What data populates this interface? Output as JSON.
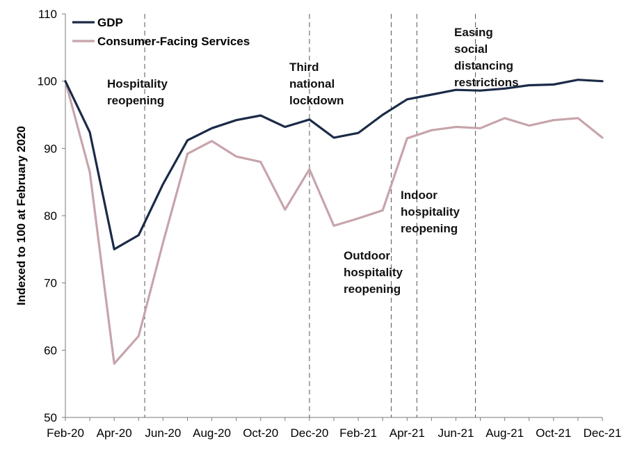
{
  "chart_data": {
    "type": "line",
    "title": "",
    "xlabel": "",
    "ylabel": "Indexed to 100 at February 2020",
    "ylim": [
      50,
      110
    ],
    "yticks": [
      50,
      60,
      70,
      80,
      90,
      100,
      110
    ],
    "x": [
      "Feb-20",
      "Mar-20",
      "Apr-20",
      "May-20",
      "Jun-20",
      "Jul-20",
      "Aug-20",
      "Sep-20",
      "Oct-20",
      "Nov-20",
      "Dec-20",
      "Jan-21",
      "Feb-21",
      "Mar-21",
      "Apr-21",
      "May-21",
      "Jun-21",
      "Jul-21",
      "Aug-21",
      "Sep-21",
      "Oct-21",
      "Nov-21",
      "Dec-21"
    ],
    "xtick_labels": [
      "Feb-20",
      "Apr-20",
      "Jun-20",
      "Aug-20",
      "Oct-20",
      "Dec-20",
      "Feb-21",
      "Apr-21",
      "Jun-21",
      "Aug-21",
      "Oct-21",
      "Dec-21"
    ],
    "series": [
      {
        "name": "GDP",
        "color": "#1b2a47",
        "values": [
          100,
          92.4,
          75.0,
          77.1,
          84.7,
          91.2,
          93.0,
          94.2,
          94.9,
          93.2,
          94.3,
          91.6,
          92.3,
          95.0,
          97.3,
          98.0,
          98.7,
          98.6,
          98.9,
          99.4,
          99.5,
          100.2,
          100.0
        ]
      },
      {
        "name": "Consumer-Facing Services",
        "color": "#c7a4ab",
        "values": [
          100,
          86.5,
          58.0,
          62.1,
          76.0,
          89.2,
          91.1,
          88.8,
          88.0,
          80.9,
          86.9,
          78.5,
          79.6,
          80.8,
          91.5,
          92.7,
          93.2,
          93.0,
          94.5,
          93.4,
          94.2,
          94.5,
          91.6
        ]
      }
    ],
    "legend_position": "top-left",
    "grid": false,
    "events": [
      {
        "x": 3.25,
        "label_lines": [
          "Hospitality",
          "reopening"
        ]
      },
      {
        "x": 10,
        "label_lines": [
          "Third",
          "national",
          "lockdown"
        ]
      },
      {
        "x": 13.35,
        "label_lines": [
          "Outdoor",
          "hospitality",
          "reopening"
        ]
      },
      {
        "x": 14.4,
        "label_lines": [
          "Indoor",
          "hospitality",
          "reopening"
        ]
      },
      {
        "x": 16.8,
        "label_lines": [
          "Easing",
          "social",
          "distancing",
          "restrictions"
        ]
      }
    ]
  }
}
